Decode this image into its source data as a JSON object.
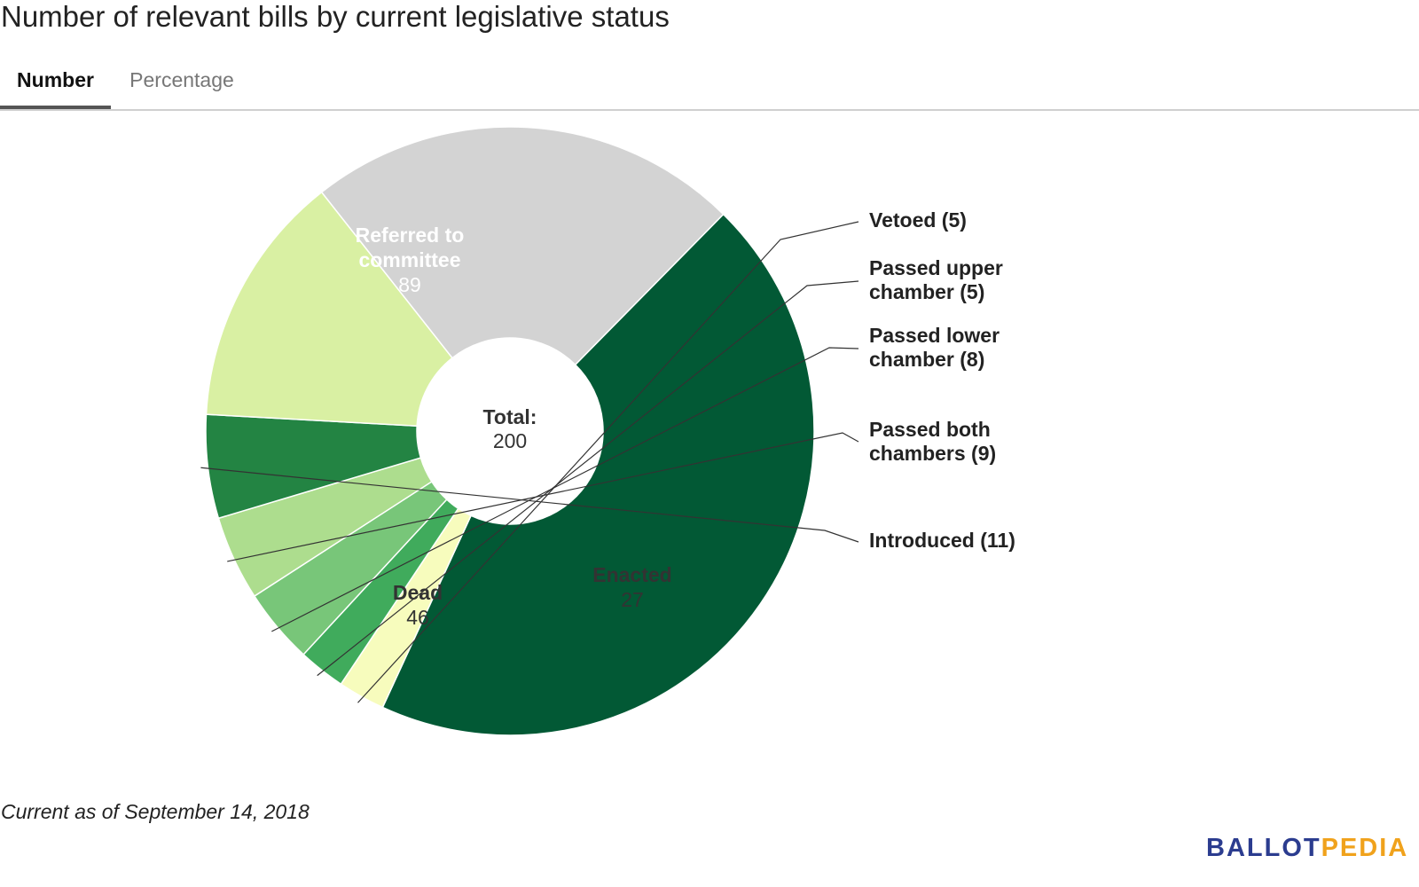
{
  "title": "Number of relevant bills by current legislative status",
  "tabs": [
    {
      "label": "Number",
      "active": true
    },
    {
      "label": "Percentage",
      "active": false
    }
  ],
  "chart_data": {
    "type": "pie",
    "center_label": "Total:",
    "total": 200,
    "slices": [
      {
        "label": "Referred to committee",
        "value": 89,
        "color": "#025935",
        "label_inside": true
      },
      {
        "label": "Vetoed",
        "value": 5,
        "color": "#f7fcbd",
        "label_inside": false
      },
      {
        "label": "Passed upper chamber",
        "value": 5,
        "color": "#40ab5c",
        "label_inside": false
      },
      {
        "label": "Passed lower chamber",
        "value": 8,
        "color": "#78c679",
        "label_inside": false
      },
      {
        "label": "Passed both chambers",
        "value": 9,
        "color": "#addd8e",
        "label_inside": false
      },
      {
        "label": "Introduced",
        "value": 11,
        "color": "#238443",
        "label_inside": false
      },
      {
        "label": "Enacted",
        "value": 27,
        "color": "#d9f0a3",
        "label_inside": true
      },
      {
        "label": "Dead",
        "value": 46,
        "color": "#d3d3d3",
        "label_inside": true
      }
    ],
    "inside_labels": [
      {
        "lines": [
          "Referred to",
          "committee"
        ],
        "value": "89"
      },
      {
        "lines": [
          "Enacted"
        ],
        "value": "27"
      },
      {
        "lines": [
          "Dead"
        ],
        "value": "46"
      }
    ],
    "outside_labels": [
      {
        "lines": [
          "Vetoed (5)"
        ]
      },
      {
        "lines": [
          "Passed upper",
          "chamber (5)"
        ]
      },
      {
        "lines": [
          "Passed lower",
          "chamber (8)"
        ]
      },
      {
        "lines": [
          "Passed both",
          "chambers (9)"
        ]
      },
      {
        "lines": [
          "Introduced (11)"
        ]
      }
    ]
  },
  "footnote": "Current as of September 14, 2018",
  "logo": {
    "part1": "BALLOT",
    "part2": "PEDIA"
  }
}
